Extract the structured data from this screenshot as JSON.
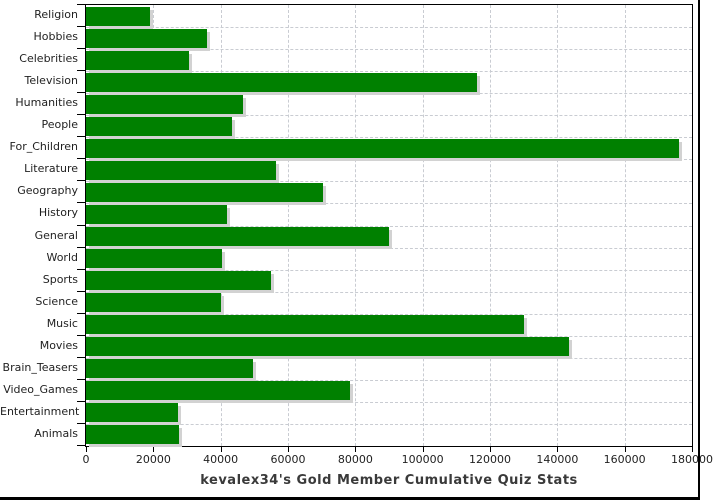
{
  "chart_data": {
    "type": "bar",
    "orientation": "horizontal",
    "title": "kevalex34's Gold Member Cumulative Quiz Stats",
    "categories": [
      "Religion",
      "Hobbies",
      "Celebrities",
      "Television",
      "Humanities",
      "People",
      "For_Children",
      "Literature",
      "Geography",
      "History",
      "General",
      "World",
      "Sports",
      "Science",
      "Music",
      "Movies",
      "Brain_Teasers",
      "Video_Games",
      "Entertainment",
      "Animals"
    ],
    "values": [
      19000,
      36000,
      30500,
      116000,
      46500,
      43500,
      176000,
      56500,
      70500,
      42000,
      90000,
      40500,
      55000,
      40000,
      130000,
      143500,
      49500,
      78500,
      27300,
      27600
    ],
    "xlabel": "",
    "ylabel": "",
    "xlim": [
      0,
      180000
    ],
    "x_ticks": [
      0,
      20000,
      40000,
      60000,
      80000,
      100000,
      120000,
      140000,
      160000,
      180000
    ],
    "grid": "dashed",
    "legend": "none",
    "bar_color": "#008000",
    "bar_shadow_color": "#d2d2d2",
    "gridline_color": "#c9ccd2",
    "axis_color": "#000000",
    "text_color": "#1f1f1f"
  }
}
